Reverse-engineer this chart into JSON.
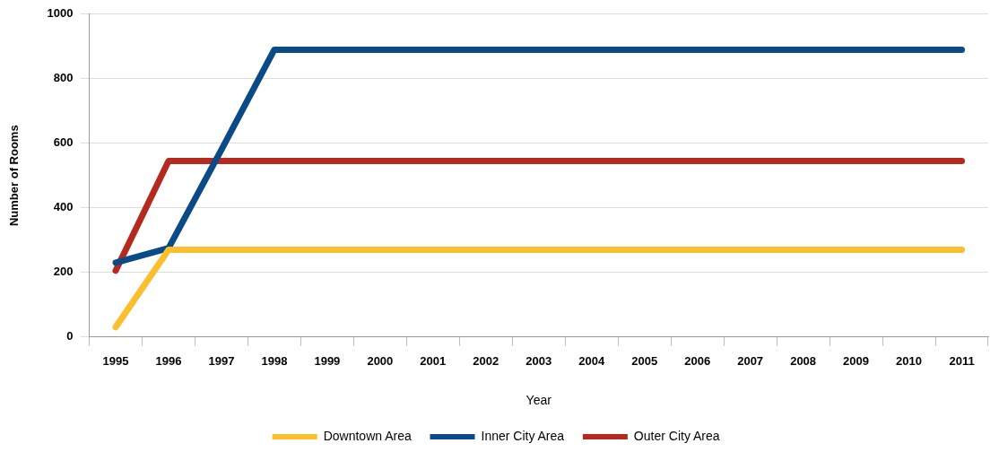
{
  "chart_data": {
    "type": "line",
    "xlabel": "Year",
    "ylabel": "Number of Rooms",
    "categories": [
      "1995",
      "1996",
      "1997",
      "1998",
      "1999",
      "2000",
      "2001",
      "2002",
      "2003",
      "2004",
      "2005",
      "2006",
      "2007",
      "2008",
      "2009",
      "2010",
      "2011"
    ],
    "series": [
      {
        "name": "Downtown Area",
        "color": "#f9bf2c",
        "values": [
          30,
          270,
          270,
          270,
          270,
          270,
          270,
          270,
          270,
          270,
          270,
          270,
          270,
          270,
          270,
          270,
          270
        ]
      },
      {
        "name": "Inner City Area",
        "color": "#0a4a86",
        "values": [
          230,
          275,
          580,
          890,
          890,
          890,
          890,
          890,
          890,
          890,
          890,
          890,
          890,
          890,
          890,
          890,
          890
        ]
      },
      {
        "name": "Outer City Area",
        "color": "#b52a1f",
        "values": [
          205,
          545,
          545,
          545,
          545,
          545,
          545,
          545,
          545,
          545,
          545,
          545,
          545,
          545,
          545,
          545,
          545
        ]
      }
    ],
    "ylim": [
      0,
      1000
    ],
    "yticks": [
      0,
      200,
      400,
      600,
      800,
      1000
    ],
    "grid": "y",
    "legend": "bottom",
    "marker": "none",
    "line_style": "solid"
  }
}
